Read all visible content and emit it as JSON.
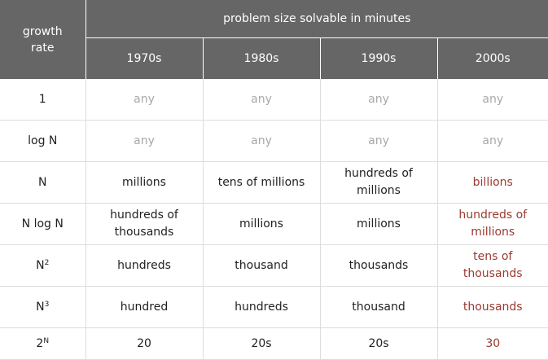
{
  "header": {
    "growth_rate": "growth rate",
    "span_title": "problem size solvable in minutes",
    "decades": [
      "1970s",
      "1980s",
      "1990s",
      "2000s"
    ]
  },
  "rows": [
    {
      "rate": "1",
      "rate_base": "1",
      "rate_sup": "",
      "cells": [
        "any",
        "any",
        "any",
        "any"
      ],
      "style": "dim"
    },
    {
      "rate": "log N",
      "rate_base": "log N",
      "rate_sup": "",
      "cells": [
        "any",
        "any",
        "any",
        "any"
      ],
      "style": "dim"
    },
    {
      "rate": "N",
      "rate_base": "N",
      "rate_sup": "",
      "cells": [
        "millions",
        "tens of millions",
        "hundreds of millions",
        "billions"
      ],
      "style": "norm"
    },
    {
      "rate": "N log N",
      "rate_base": "N log N",
      "rate_sup": "",
      "cells": [
        "hundreds of thousands",
        "millions",
        "millions",
        "hundreds of millions"
      ],
      "style": "norm"
    },
    {
      "rate": "N²",
      "rate_base": "N",
      "rate_sup": "2",
      "cells": [
        "hundreds",
        "thousand",
        "thousands",
        "tens of thousands"
      ],
      "style": "norm"
    },
    {
      "rate": "N³",
      "rate_base": "N",
      "rate_sup": "3",
      "cells": [
        "hundred",
        "hundreds",
        "thousand",
        "thousands"
      ],
      "style": "norm"
    },
    {
      "rate": "2ᴺ",
      "rate_base": "2",
      "rate_sup": "N",
      "cells": [
        "20",
        "20s",
        "20s",
        "30"
      ],
      "style": "norm"
    }
  ],
  "colors": {
    "header_bg": "#666666",
    "header_text": "#ffffff",
    "muted_text": "#a8a8a8",
    "highlight_text": "#9a3a30",
    "body_text": "#222222"
  }
}
